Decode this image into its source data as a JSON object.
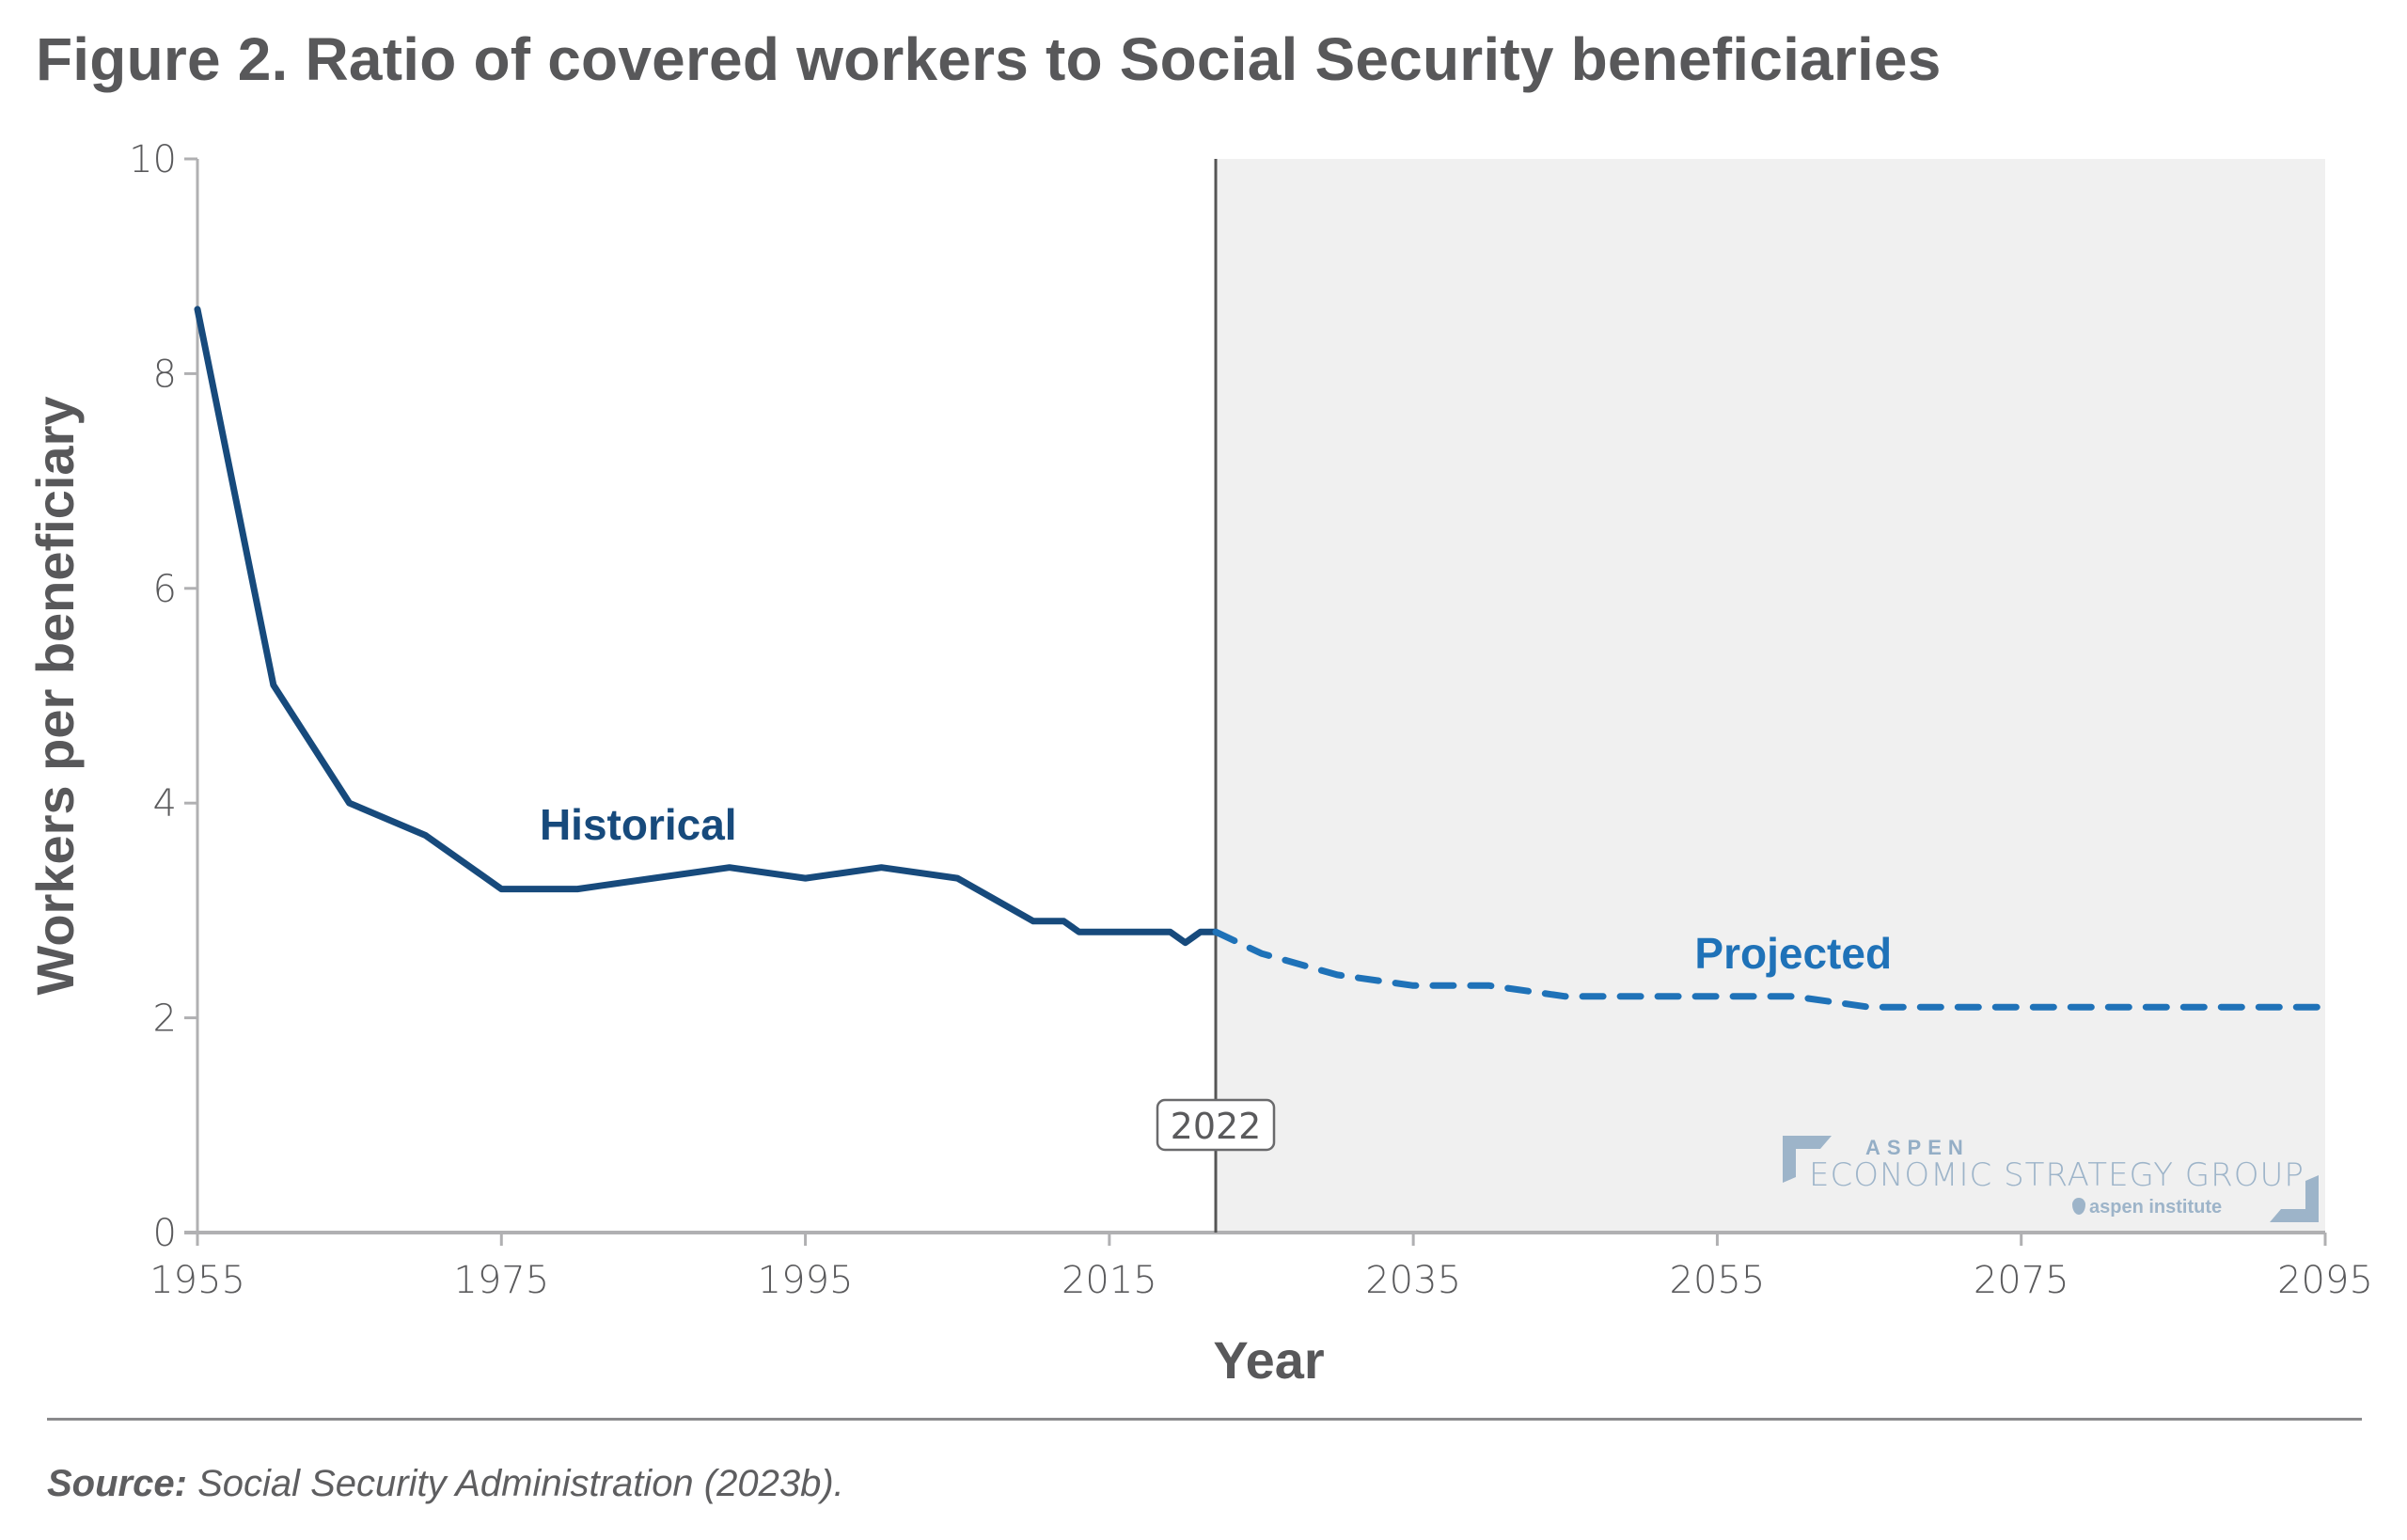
{
  "figure": {
    "title": "Figure 2. Ratio of covered workers to Social Security beneficiaries",
    "source_label": "Source:",
    "source_text": "Social Security Administration (2023b)."
  },
  "logo": {
    "line1": "ASPEN",
    "line2": "ECONOMIC STRATEGY GROUP",
    "line3": "aspen institute",
    "color": "#9db4c9"
  },
  "colors": {
    "historical": "#174a7c",
    "projected": "#1f72b8",
    "projection_shade": "#f0f0f0",
    "axis": "#b0b0b2",
    "divider_line": "#555555",
    "text": "#58585a"
  },
  "chart_data": {
    "type": "line",
    "title": "Ratio of covered workers to Social Security beneficiaries",
    "xlabel": "Year",
    "ylabel": "Workers per beneficiary",
    "xlim": [
      1955,
      2095
    ],
    "ylim": [
      0,
      10
    ],
    "x_ticks": [
      1955,
      1975,
      1995,
      2015,
      2035,
      2055,
      2075,
      2095
    ],
    "y_ticks": [
      0,
      2,
      4,
      6,
      8,
      10
    ],
    "grid": false,
    "legend": "inline labels",
    "projection_start_year": 2022,
    "projection_marker_label": "2022",
    "projection_shaded": true,
    "series": [
      {
        "name": "Historical",
        "style": "solid",
        "label_anchor": {
          "x": 1984,
          "y": 3.8
        },
        "points": [
          [
            1955,
            8.6
          ],
          [
            1960,
            5.1
          ],
          [
            1965,
            4.0
          ],
          [
            1970,
            3.7
          ],
          [
            1975,
            3.2
          ],
          [
            1980,
            3.2
          ],
          [
            1985,
            3.3
          ],
          [
            1990,
            3.4
          ],
          [
            1995,
            3.3
          ],
          [
            2000,
            3.4
          ],
          [
            2005,
            3.3
          ],
          [
            2010,
            2.9
          ],
          [
            2012,
            2.9
          ],
          [
            2013,
            2.8
          ],
          [
            2015,
            2.8
          ],
          [
            2019,
            2.8
          ],
          [
            2020,
            2.7
          ],
          [
            2021,
            2.8
          ],
          [
            2022,
            2.8
          ]
        ]
      },
      {
        "name": "Projected",
        "style": "dashed",
        "label_anchor": {
          "x": 2060,
          "y": 2.6
        },
        "points": [
          [
            2022,
            2.8
          ],
          [
            2025,
            2.6
          ],
          [
            2030,
            2.4
          ],
          [
            2035,
            2.3
          ],
          [
            2040,
            2.3
          ],
          [
            2045,
            2.2
          ],
          [
            2050,
            2.2
          ],
          [
            2055,
            2.2
          ],
          [
            2060,
            2.2
          ],
          [
            2065,
            2.1
          ],
          [
            2070,
            2.1
          ],
          [
            2075,
            2.1
          ],
          [
            2080,
            2.1
          ],
          [
            2085,
            2.1
          ],
          [
            2090,
            2.1
          ],
          [
            2095,
            2.1
          ]
        ]
      }
    ]
  }
}
